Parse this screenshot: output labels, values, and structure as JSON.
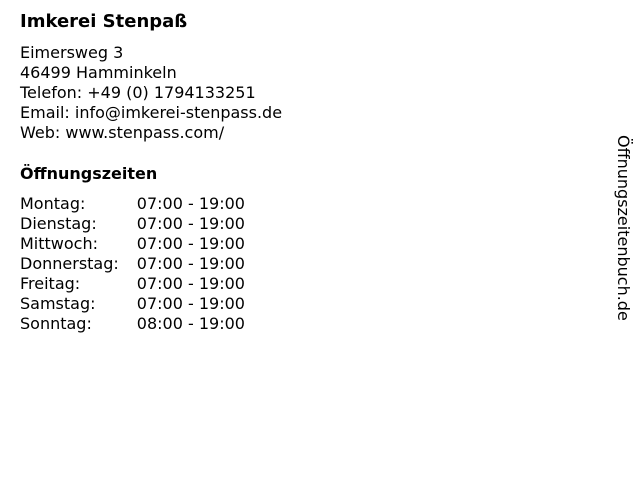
{
  "business": {
    "name": "Imkerei Stenpaß",
    "address_lines": [
      "Eimersweg 3",
      "46499 Hamminkeln",
      "Telefon: +49 (0) 1794133251",
      "Email: info@imkerei-stenpass.de",
      "Web: www.stenpass.com/"
    ]
  },
  "hours": {
    "heading": "Öffnungszeiten",
    "rows": [
      {
        "day": "Montag:",
        "time": "07:00 - 19:00"
      },
      {
        "day": "Dienstag:",
        "time": "07:00 - 19:00"
      },
      {
        "day": "Mittwoch:",
        "time": "07:00 - 19:00"
      },
      {
        "day": "Donnerstag:",
        "time": "07:00 - 19:00"
      },
      {
        "day": "Freitag:",
        "time": "07:00 - 19:00"
      },
      {
        "day": "Samstag:",
        "time": "07:00 - 19:00"
      },
      {
        "day": "Sonntag:",
        "time": "08:00 - 19:00"
      }
    ]
  },
  "side_label": "Öffnungszeitenbuch.de"
}
